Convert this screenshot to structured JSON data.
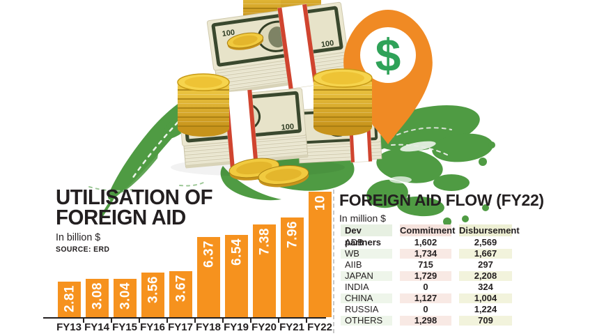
{
  "illustration": {
    "dollar_glyph": "$",
    "map_color": "#4f9b43",
    "pin_color": "#f08a24",
    "dollar_color": "#2fa258",
    "coin_gold": "#e9b427",
    "bill_paper": "#ebe7d0",
    "band_red": "#d0442f"
  },
  "chart_data": [
    {
      "type": "bar",
      "title": "UTILISATION OF FOREIGN AID",
      "title_lines": [
        "UTILISATION OF",
        "FOREIGN AID"
      ],
      "unit_label": "In billion $",
      "source": "SOURCE: ERD",
      "xlabel": "",
      "ylabel": "",
      "ylim": [
        0,
        10
      ],
      "grid": false,
      "legend": false,
      "bar_color": "#f6921e",
      "value_label_color": "#ffffff",
      "categories": [
        "FY13",
        "FY14",
        "FY15",
        "FY16",
        "FY17",
        "FY18",
        "FY19",
        "FY20",
        "FY21",
        "FY22"
      ],
      "values": [
        2.81,
        3.08,
        3.04,
        3.56,
        3.67,
        6.37,
        6.54,
        7.38,
        7.96,
        10
      ],
      "value_labels": [
        "2.81",
        "3.08",
        "3.04",
        "3.56",
        "3.67",
        "6.37",
        "6.54",
        "7.38",
        "7.96",
        "10"
      ]
    },
    {
      "type": "table",
      "title": "FOREIGN AID FLOW (FY22)",
      "unit_label": "In million $",
      "columns": [
        "Dev partners",
        "Commitment",
        "Disbursement"
      ],
      "rows": [
        [
          "ADB",
          "1,602",
          "2,569"
        ],
        [
          "WB",
          "1,734",
          "1,667"
        ],
        [
          "AIIB",
          "715",
          "297"
        ],
        [
          "JAPAN",
          "1,729",
          "2,208"
        ],
        [
          "INDIA",
          "0",
          "324"
        ],
        [
          "CHINA",
          "1,127",
          "1,004"
        ],
        [
          "RUSSIA",
          "0",
          "1,224"
        ],
        [
          "OTHERS",
          "1,298",
          "709"
        ]
      ],
      "header_colors": [
        "#e7f0e2",
        "#f5e2dc",
        "#edefd3"
      ],
      "stripe_colors": [
        "#eef5ea",
        "#f8e9e4",
        "#f2f3dc"
      ]
    }
  ]
}
